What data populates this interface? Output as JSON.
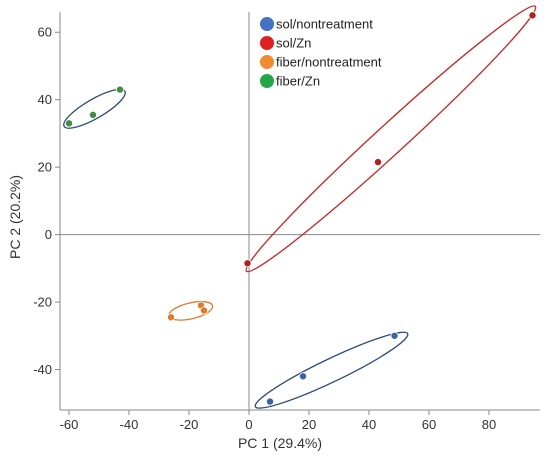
{
  "chart_data": {
    "type": "scatter",
    "title": "",
    "xlabel": "PC 1 (29.4%)",
    "ylabel": "PC 2 (20.2%)",
    "xlim": [
      -63,
      97
    ],
    "ylim": [
      -52,
      66
    ],
    "xticks": [
      -60,
      -40,
      -20,
      0,
      20,
      40,
      60,
      80
    ],
    "yticks": [
      -40,
      -20,
      0,
      20,
      40,
      60
    ],
    "zero_lines": true,
    "grid": false,
    "legend_position": "top-center",
    "series": [
      {
        "name": "sol/nontreatment",
        "color": "#3a63a5",
        "legend_color": "#4472c4",
        "points": [
          [
            7,
            -49.5
          ],
          [
            18,
            -42
          ],
          [
            48.5,
            -30
          ]
        ]
      },
      {
        "name": "sol/Zn",
        "color": "#b5201f",
        "legend_color": "#e02020",
        "points": [
          [
            -0.5,
            -8.5
          ],
          [
            43,
            21.5
          ],
          [
            94.5,
            65
          ]
        ]
      },
      {
        "name": "fiber/nontreatment",
        "color": "#e07a2a",
        "legend_color": "#f28a30",
        "points": [
          [
            -26,
            -24.5
          ],
          [
            -16,
            -21
          ],
          [
            -15,
            -22.5
          ]
        ]
      },
      {
        "name": "fiber/Zn",
        "color": "#3f8f3f",
        "legend_color": "#22a84a",
        "points": [
          [
            -60,
            33
          ],
          [
            -52,
            35.5
          ],
          [
            -43,
            43
          ]
        ]
      }
    ],
    "ellipses": [
      {
        "series": "sol/nontreatment",
        "center": [
          27.5,
          -40.2
        ],
        "semi_major": 26.5,
        "semi_minor": 3.6,
        "angle_deg": 25.6,
        "color": "#2c4a7c"
      },
      {
        "series": "sol/Zn",
        "center": [
          47.3,
          28.4
        ],
        "semi_major": 61.5,
        "semi_minor": 4.6,
        "angle_deg": 42.5,
        "color": "#cc2222"
      },
      {
        "series": "fiber/nontreatment",
        "center": [
          -19.4,
          -22.6
        ],
        "semi_major": 7.0,
        "semi_minor": 2.5,
        "angle_deg": 13.0,
        "color": "#e07a2a"
      },
      {
        "series": "fiber/Zn",
        "center": [
          -51.5,
          37.3
        ],
        "semi_major": 11.0,
        "semi_minor": 3.0,
        "angle_deg": 30.0,
        "color": "#2c4a7c"
      }
    ]
  }
}
